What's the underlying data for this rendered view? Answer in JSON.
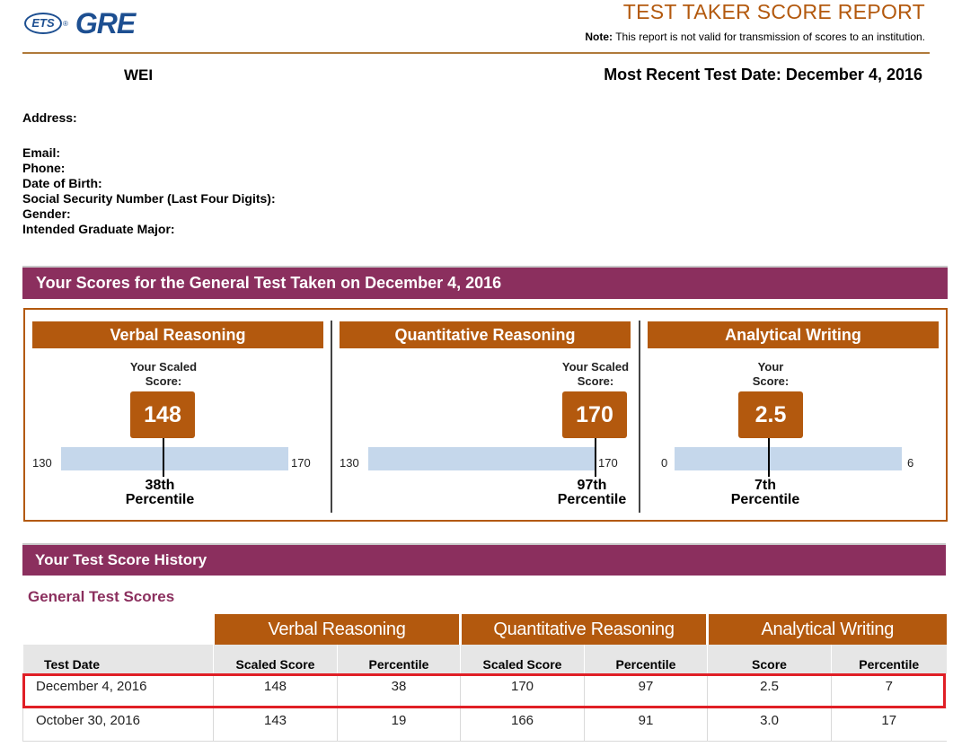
{
  "header": {
    "logo_ets": "ETS",
    "logo_gre": "GRE",
    "title": "TEST TAKER SCORE REPORT",
    "note_label": "Note:",
    "note_text": "This report is not valid for transmission of scores to an institution."
  },
  "candidate": {
    "name": "WEI",
    "recent_test": "Most Recent Test Date: December 4, 2016"
  },
  "info_fields": {
    "address": "Address:",
    "email": "Email:",
    "phone": "Phone:",
    "dob": "Date of Birth:",
    "ssn": "Social Security Number (Last Four Digits):",
    "gender": "Gender:",
    "major": "Intended Graduate Major:"
  },
  "scores_banner": "Your Scores for the General Test Taken on December 4, 2016",
  "scores": [
    {
      "title": "Verbal Reasoning",
      "label_line1": "Your Scaled",
      "label_line2": "Score:",
      "score": "148",
      "min": "130",
      "max": "170",
      "score_value": 148,
      "min_value": 130,
      "max_value": 170,
      "percentile_line1": "38th",
      "percentile_line2": "Percentile"
    },
    {
      "title": "Quantitative Reasoning",
      "label_line1": "Your Scaled",
      "label_line2": "Score:",
      "score": "170",
      "min": "130",
      "max": "170",
      "score_value": 170,
      "min_value": 130,
      "max_value": 170,
      "percentile_line1": "97th",
      "percentile_line2": "Percentile"
    },
    {
      "title": "Analytical Writing",
      "label_line1": "Your",
      "label_line2": "Score:",
      "score": "2.5",
      "min": "0",
      "max": "6",
      "score_value": 2.5,
      "min_value": 0,
      "max_value": 6,
      "percentile_line1": "7th",
      "percentile_line2": "Percentile"
    }
  ],
  "history_banner": "Your Test Score History",
  "history_subheading": "General Test Scores",
  "history_table": {
    "group_headers": [
      "Verbal Reasoning",
      "Quantitative Reasoning",
      "Analytical Writing"
    ],
    "columns": [
      "Test Date",
      "Scaled Score",
      "Percentile",
      "Scaled Score",
      "Percentile",
      "Score",
      "Percentile"
    ],
    "rows": [
      [
        "December 4, 2016",
        "148",
        "38",
        "170",
        "97",
        "2.5",
        "7"
      ],
      [
        "October 30, 2016",
        "143",
        "19",
        "166",
        "91",
        "3.0",
        "17"
      ]
    ]
  },
  "colors": {
    "banner": "#8b2f5e",
    "accent": "#b3590e",
    "scale_bar": "#c5d7eb",
    "highlight": "#e01f26",
    "logo": "#1d4f91"
  }
}
